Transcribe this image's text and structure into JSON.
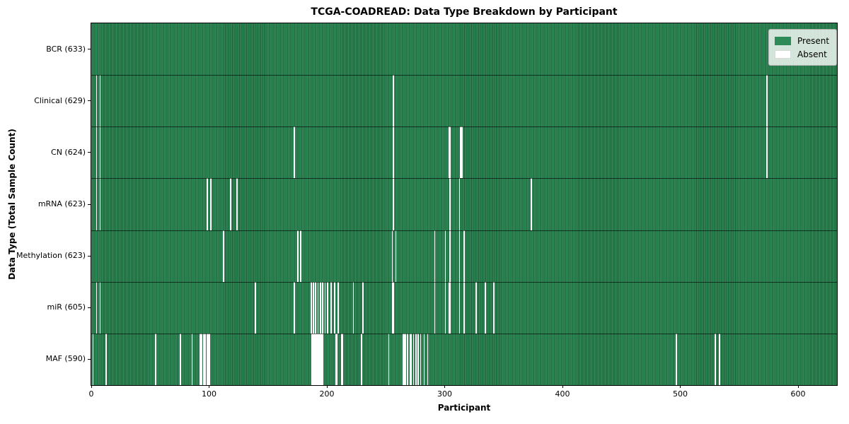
{
  "colors": {
    "present": "#2e8b57",
    "present_edge": "#1d5c38",
    "absent": "#ffffff",
    "plot_border": "#000000",
    "row_divider": "#000000",
    "legend_bg": "#eeeeee",
    "legend_border": "#b0b0b0",
    "background": "#ffffff",
    "text": "#000000"
  },
  "legend": {
    "present_label": "Present",
    "absent_label": "Absent"
  },
  "chart_data": {
    "type": "heatmap",
    "title": "TCGA-COADREAD: Data Type Breakdown by Participant",
    "xlabel": "Participant",
    "ylabel": "Data Type (Total Sample Count)",
    "xlim": [
      0,
      633
    ],
    "xticks": [
      0,
      100,
      200,
      300,
      400,
      500,
      600
    ],
    "total_participants": 633,
    "legend_entries": [
      "Present",
      "Absent"
    ],
    "legend_position": "upper right",
    "grid": false,
    "rows": [
      {
        "name": "bcr",
        "label": "BCR (633)",
        "data_type": "BCR",
        "present_count": 633,
        "absent_count": 0,
        "absent_participants": []
      },
      {
        "name": "clinical",
        "label": "Clinical (629)",
        "data_type": "Clinical",
        "present_count": 629,
        "absent_count": 4,
        "absent_participants": [
          4,
          7,
          256,
          573
        ]
      },
      {
        "name": "cn",
        "label": "CN (624)",
        "data_type": "CN",
        "present_count": 624,
        "absent_count": 9,
        "absent_participants": [
          4,
          7,
          172,
          256,
          303,
          304,
          313,
          314,
          573
        ]
      },
      {
        "name": "mrna",
        "label": "mRNA (623)",
        "data_type": "mRNA",
        "present_count": 623,
        "absent_count": 10,
        "absent_participants": [
          4,
          7,
          98,
          101,
          118,
          123,
          256,
          304,
          312,
          373
        ]
      },
      {
        "name": "methylation",
        "label": "Methylation (623)",
        "data_type": "Methylation",
        "present_count": 623,
        "absent_count": 10,
        "absent_participants": [
          112,
          175,
          177,
          255,
          258,
          291,
          300,
          304,
          312,
          316
        ]
      },
      {
        "name": "mir",
        "label": "miR (605)",
        "data_type": "miR",
        "present_count": 605,
        "absent_count": 28,
        "absent_participants": [
          4,
          7,
          139,
          172,
          186,
          188,
          190,
          192,
          194,
          196,
          198,
          200,
          203,
          206,
          209,
          222,
          230,
          255,
          256,
          291,
          300,
          303,
          304,
          312,
          316,
          326,
          334,
          341
        ]
      },
      {
        "name": "maf",
        "label": "MAF (590)",
        "data_type": "MAF",
        "present_count": 590,
        "absent_count": 43,
        "absent_participants": [
          1,
          12,
          54,
          75,
          85,
          92,
          93,
          95,
          96,
          98,
          99,
          100,
          187,
          188,
          189,
          190,
          191,
          192,
          193,
          194,
          195,
          196,
          207,
          208,
          212,
          213,
          229,
          252,
          264,
          265,
          266,
          268,
          270,
          271,
          273,
          275,
          277,
          279,
          282,
          285,
          496,
          529,
          533
        ]
      }
    ]
  }
}
